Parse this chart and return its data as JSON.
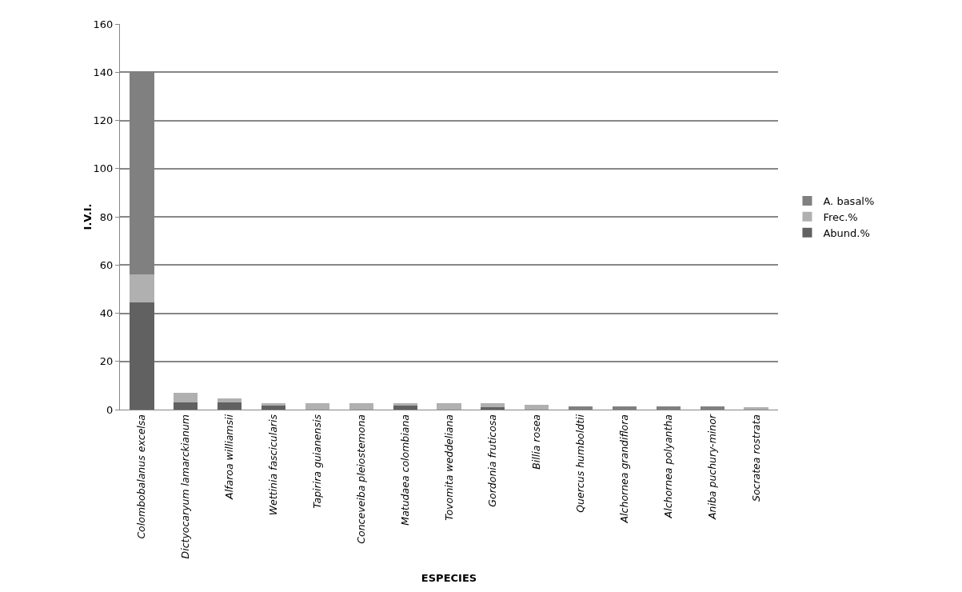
{
  "chart_data": {
    "type": "bar",
    "stacked": true,
    "xlabel": "ESPECIES",
    "ylabel": "I.V.I.",
    "categories": [
      "Colombobalanus excelsa",
      "Dictyocaryum lamarckianum",
      "Alfaroa williamsii",
      "Wettinia fascicularis",
      "Tapirira guianensis",
      "Conceveiba pleiostemona",
      "Matudaea colombiana",
      "Tovomita weddeliana",
      "Gordonia fruticosa",
      "Billia rosea",
      "Quercus humboldtii",
      "Alchornea grandiflora",
      "Alchornea polyantha",
      "Aniba puchury-minor",
      "Socratea rostrata"
    ],
    "series": [
      {
        "name": "Abund.%",
        "color": "#616161",
        "values": [
          44.5,
          3.1,
          3,
          1.5,
          null,
          null,
          1.5,
          null,
          1,
          null,
          null,
          null,
          null,
          null,
          null
        ]
      },
      {
        "name": "Frec.%",
        "color": "#b0b0b0",
        "values": [
          11.5,
          3.8,
          1.5,
          1.2,
          2.5,
          2.5,
          1.2,
          2.5,
          1.5,
          2,
          null,
          null,
          null,
          null,
          1
        ]
      },
      {
        "name": "A. basal%",
        "color": "#808080",
        "values": [
          84,
          null,
          null,
          null,
          null,
          null,
          null,
          null,
          null,
          null,
          1.2,
          1.2,
          1.2,
          1.2,
          null
        ]
      }
    ],
    "ylim": [
      0,
      160
    ],
    "yticks": [
      0,
      20,
      40,
      60,
      80,
      100,
      120,
      140,
      160
    ],
    "grid": "y",
    "legend": "right"
  }
}
